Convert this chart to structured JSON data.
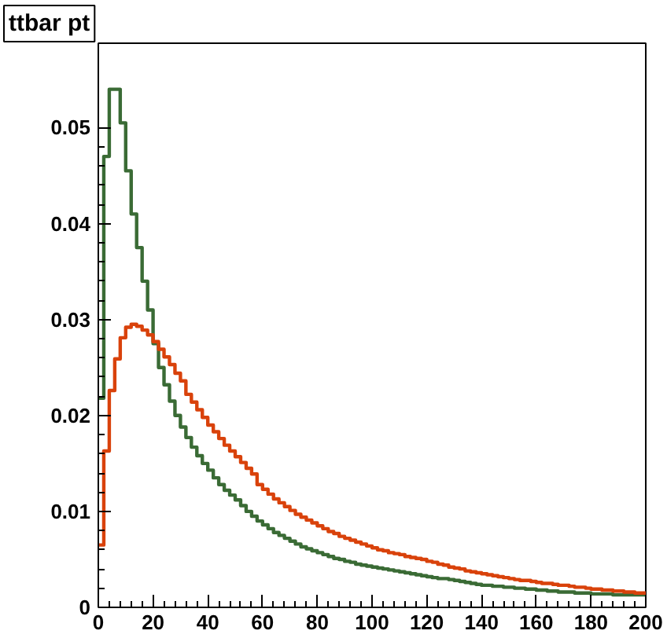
{
  "chart_data": {
    "type": "histogram",
    "title": "ttbar pt",
    "bins": [
      0,
      2,
      4,
      6,
      8,
      10,
      12,
      14,
      16,
      18,
      20,
      22,
      24,
      26,
      28,
      30,
      32,
      34,
      36,
      38,
      40,
      42,
      44,
      46,
      48,
      50,
      52,
      54,
      56,
      58,
      60,
      62,
      64,
      66,
      68,
      70,
      72,
      74,
      76,
      78,
      80,
      82,
      84,
      86,
      88,
      90,
      92,
      94,
      96,
      98,
      100,
      102,
      104,
      106,
      108,
      110,
      112,
      114,
      116,
      118,
      120,
      122,
      124,
      126,
      128,
      130,
      132,
      134,
      136,
      138,
      140,
      142,
      144,
      146,
      148,
      150,
      152,
      154,
      156,
      158,
      160,
      162,
      164,
      166,
      168,
      170,
      172,
      174,
      176,
      178,
      180,
      182,
      184,
      186,
      188,
      190,
      192,
      194,
      196,
      198,
      200
    ],
    "series": [
      {
        "color": "#3a6b35",
        "values": [
          0.0218,
          0.047,
          0.054,
          0.054,
          0.0505,
          0.0455,
          0.041,
          0.0375,
          0.034,
          0.031,
          0.0275,
          0.025,
          0.0232,
          0.0215,
          0.02,
          0.0188,
          0.0177,
          0.0167,
          0.0158,
          0.015,
          0.0143,
          0.0135,
          0.0128,
          0.0122,
          0.0117,
          0.0112,
          0.0106,
          0.01,
          0.0095,
          0.009,
          0.0086,
          0.0082,
          0.0078,
          0.0075,
          0.0072,
          0.0069,
          0.0066,
          0.0063,
          0.0061,
          0.0059,
          0.0057,
          0.0055,
          0.0053,
          0.0051,
          0.005,
          0.0048,
          0.0047,
          0.0045,
          0.0044,
          0.0043,
          0.0042,
          0.0041,
          0.004,
          0.0039,
          0.0038,
          0.0037,
          0.0036,
          0.0035,
          0.0034,
          0.0033,
          0.0032,
          0.0031,
          0.003,
          0.003,
          0.0029,
          0.0028,
          0.0027,
          0.0026,
          0.0025,
          0.0024,
          0.0023,
          0.0023,
          0.0022,
          0.0022,
          0.0021,
          0.0021,
          0.002,
          0.002,
          0.0019,
          0.0019,
          0.0018,
          0.0018,
          0.0017,
          0.0017,
          0.0016,
          0.0016,
          0.0016,
          0.0015,
          0.0015,
          0.0015,
          0.0014,
          0.0014,
          0.0014,
          0.0014,
          0.0013,
          0.0013,
          0.0013,
          0.0013,
          0.0013,
          0.0013
        ]
      },
      {
        "color": "#d9420b",
        "values": [
          0.0065,
          0.0163,
          0.0226,
          0.0259,
          0.0281,
          0.0292,
          0.0295,
          0.0293,
          0.0289,
          0.0284,
          0.0277,
          0.0269,
          0.0261,
          0.0253,
          0.0244,
          0.0236,
          0.0222,
          0.0214,
          0.0206,
          0.0198,
          0.019,
          0.0183,
          0.0176,
          0.0169,
          0.0163,
          0.0157,
          0.0151,
          0.0145,
          0.0139,
          0.0128,
          0.0123,
          0.0118,
          0.0113,
          0.0109,
          0.0105,
          0.0101,
          0.0097,
          0.0094,
          0.0091,
          0.0088,
          0.0085,
          0.0082,
          0.0079,
          0.0077,
          0.0074,
          0.0072,
          0.007,
          0.0068,
          0.0066,
          0.0064,
          0.0062,
          0.006,
          0.0059,
          0.0057,
          0.0056,
          0.0055,
          0.0053,
          0.0052,
          0.0051,
          0.005,
          0.0048,
          0.0047,
          0.0045,
          0.0044,
          0.0042,
          0.0041,
          0.004,
          0.0038,
          0.0037,
          0.0036,
          0.0035,
          0.0034,
          0.0033,
          0.0032,
          0.0031,
          0.003,
          0.0029,
          0.0028,
          0.0028,
          0.0027,
          0.0026,
          0.0025,
          0.0025,
          0.0024,
          0.0023,
          0.0023,
          0.0022,
          0.0021,
          0.0021,
          0.002,
          0.0019,
          0.0019,
          0.0018,
          0.0018,
          0.0017,
          0.0017,
          0.0016,
          0.0016,
          0.0015,
          0.0015
        ]
      }
    ],
    "xlim": [
      0,
      200
    ],
    "xticks": [
      0,
      20,
      40,
      60,
      80,
      100,
      120,
      140,
      160,
      180,
      200
    ],
    "ylim": [
      0,
      0.0588
    ],
    "yticks": [
      0,
      0.01,
      0.02,
      0.03,
      0.04,
      0.05
    ],
    "grid": false
  }
}
